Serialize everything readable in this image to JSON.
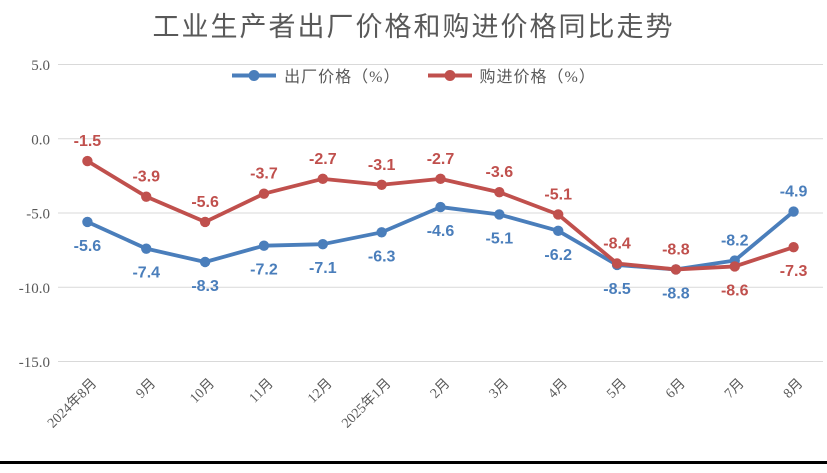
{
  "colors": {
    "grid": "#D9D9D9",
    "axis_text": "#595959",
    "title_text": "#595959",
    "bottom_rule": "#000000",
    "background": "#FFFFFF"
  },
  "chart_data": {
    "type": "line",
    "title": "工业生产者出厂价格和购进价格同比走势",
    "categories": [
      "2024年8月",
      "9月",
      "10月",
      "11月",
      "12月",
      "2025年1月",
      "2月",
      "3月",
      "4月",
      "5月",
      "6月",
      "7月",
      "8月"
    ],
    "series": [
      {
        "name": "出厂价格（%）",
        "color": "#4A7EBB",
        "values": [
          -5.6,
          -7.4,
          -8.3,
          -7.2,
          -7.1,
          -6.3,
          -4.6,
          -5.1,
          -6.2,
          -8.5,
          -8.8,
          -8.2,
          -4.9
        ],
        "label_positions": [
          "below",
          "below",
          "below",
          "below",
          "below",
          "below",
          "below",
          "below",
          "below",
          "below",
          "below",
          "above",
          "above"
        ]
      },
      {
        "name": "购进价格（%）",
        "color": "#C0504D",
        "values": [
          -1.5,
          -3.9,
          -5.6,
          -3.7,
          -2.7,
          -3.1,
          -2.7,
          -3.6,
          -5.1,
          -8.4,
          -8.8,
          -8.6,
          -7.3
        ],
        "label_positions": [
          "above",
          "above",
          "above",
          "above",
          "above",
          "above",
          "above",
          "above",
          "above",
          "above",
          "above",
          "below",
          "below"
        ]
      }
    ],
    "y_ticks": [
      5.0,
      0.0,
      -5.0,
      -10.0,
      -15.0
    ],
    "ylim": [
      -15,
      5
    ],
    "grid": true,
    "data_labels": true,
    "label_decimals": 1,
    "legend_position": "top-center",
    "x_label_rotation": -45,
    "xlabel": "",
    "ylabel": ""
  }
}
